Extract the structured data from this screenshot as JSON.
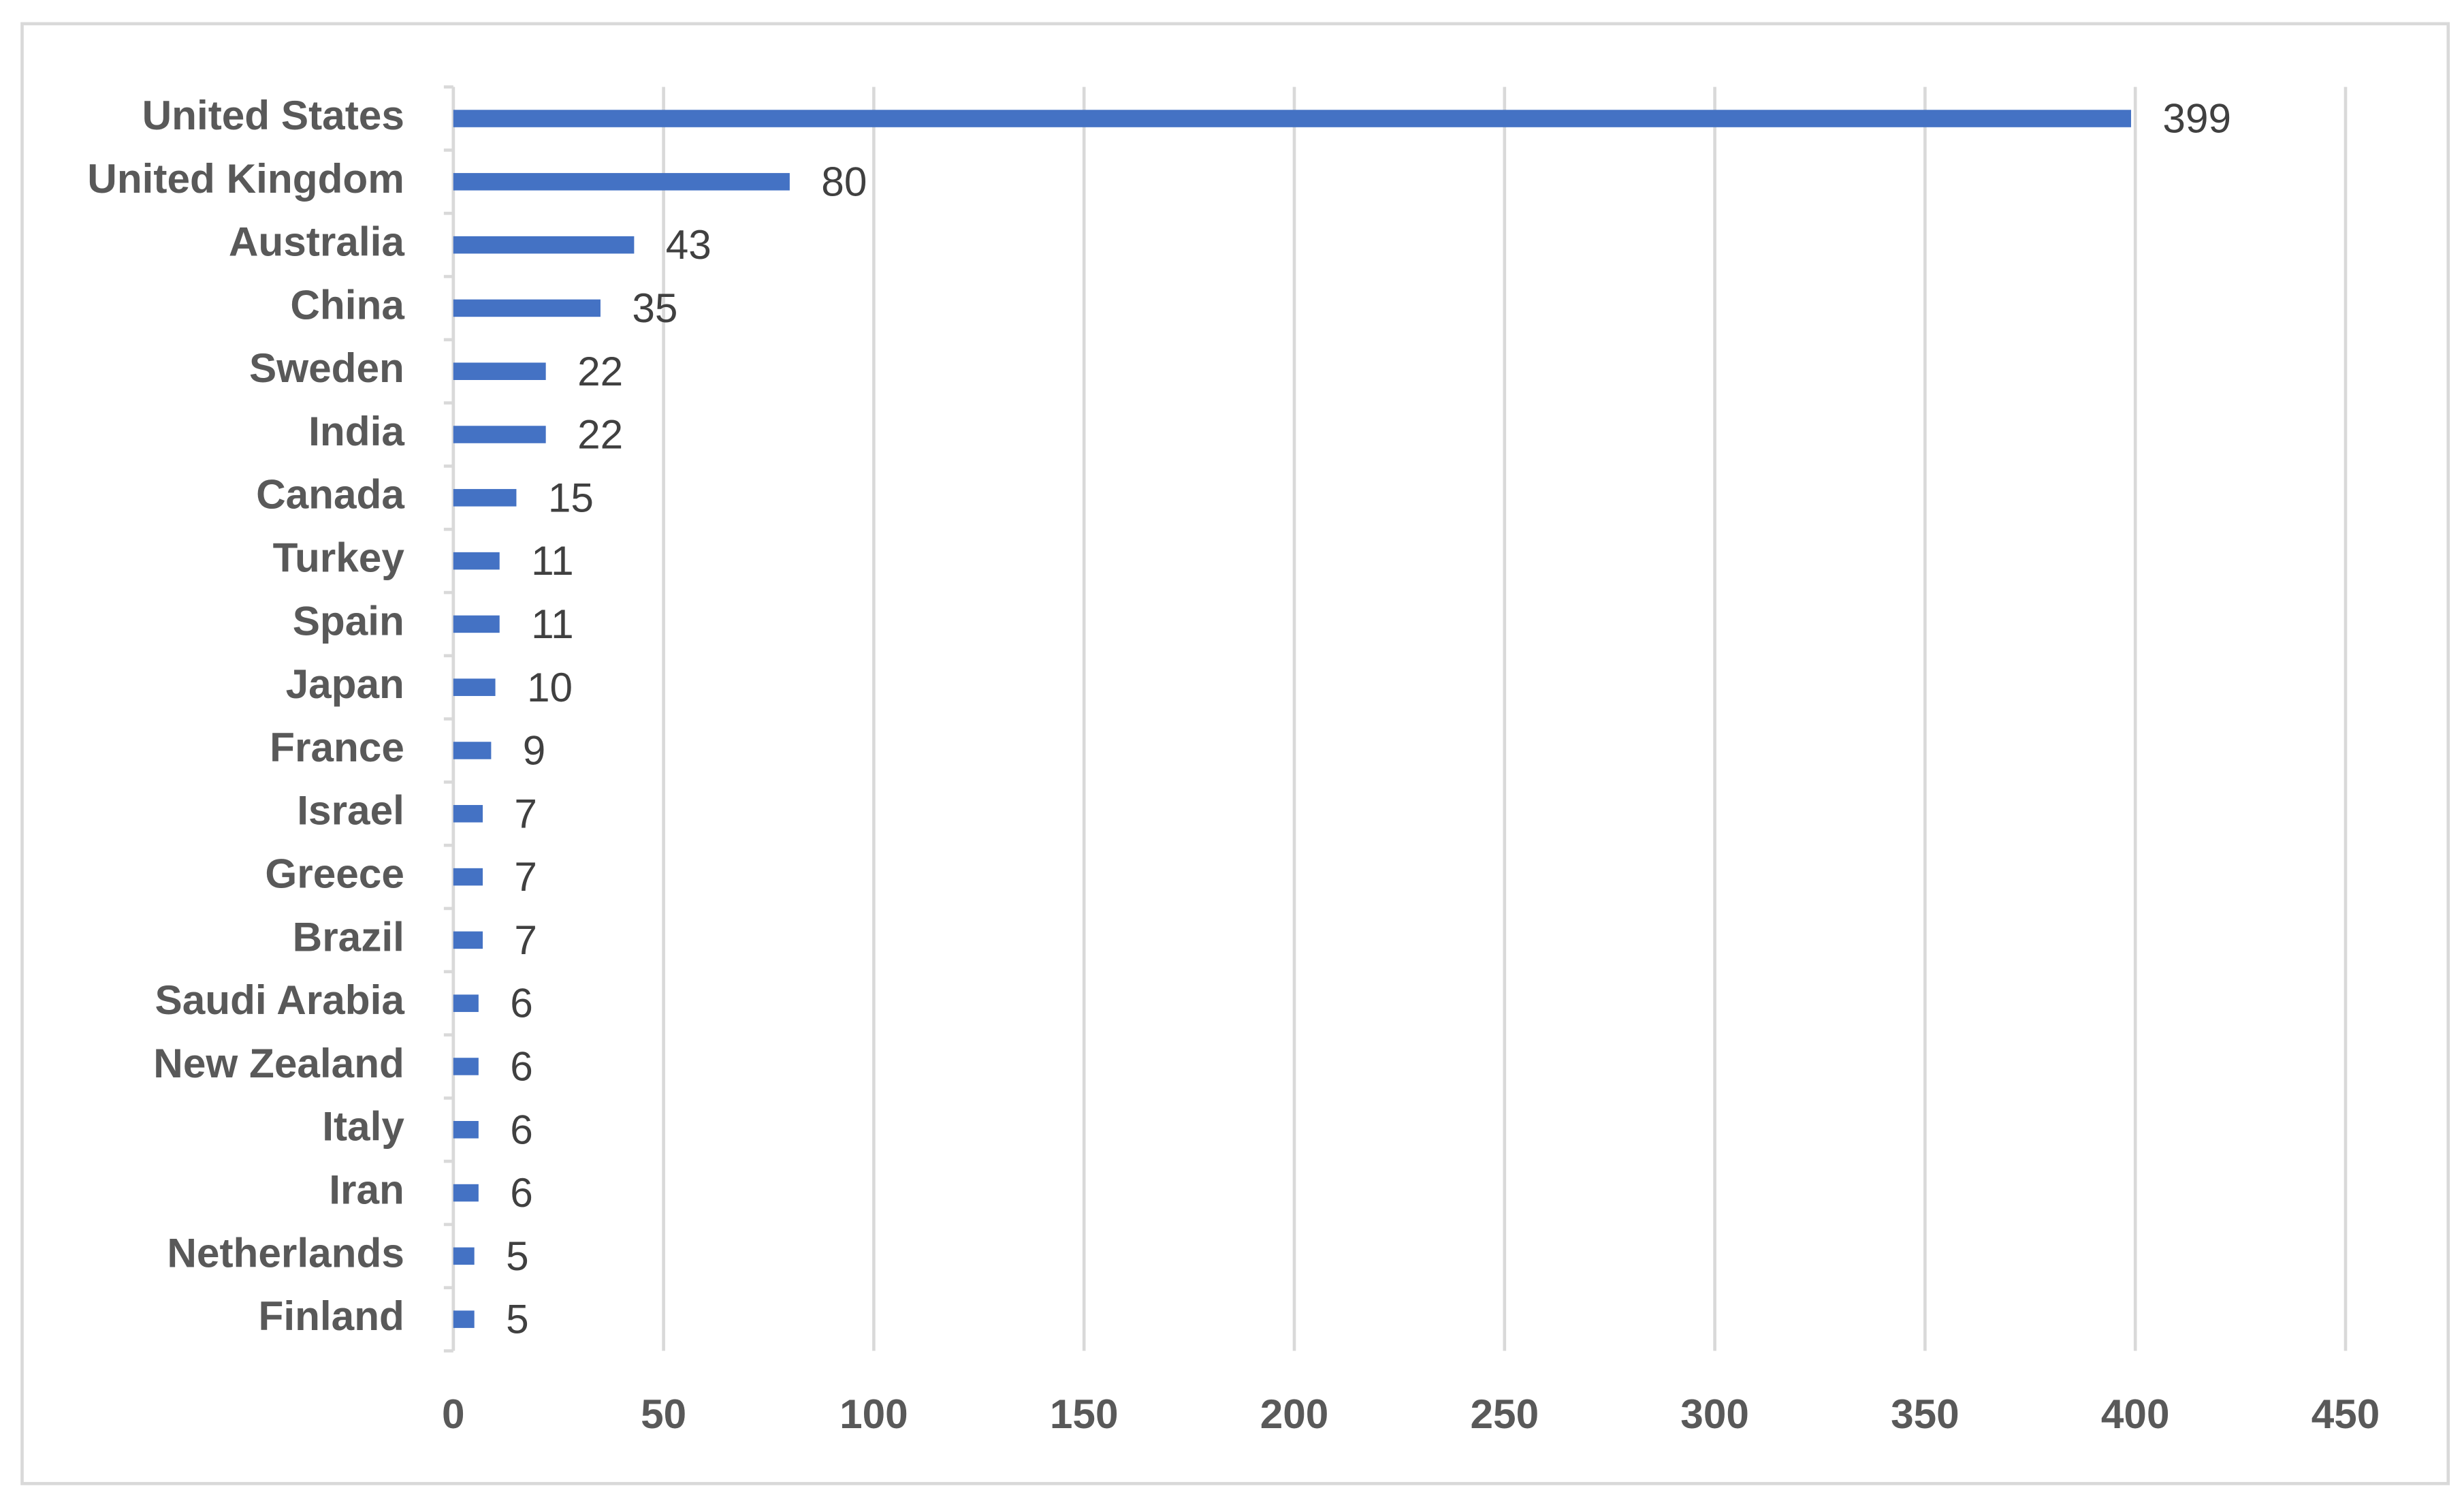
{
  "chart_data": {
    "type": "bar",
    "orientation": "horizontal",
    "categories": [
      "United States",
      "United Kingdom",
      "Australia",
      "China",
      "Sweden",
      "India",
      "Canada",
      "Turkey",
      "Spain",
      "Japan",
      "France",
      "Israel",
      "Greece",
      "Brazil",
      "Saudi Arabia",
      "New Zealand",
      "Italy",
      "Iran",
      "Netherlands",
      "Finland"
    ],
    "values": [
      399,
      80,
      43,
      35,
      22,
      22,
      15,
      11,
      11,
      10,
      9,
      7,
      7,
      7,
      6,
      6,
      6,
      6,
      5,
      5
    ],
    "color": "#4472c4",
    "xlim": [
      0,
      450
    ],
    "xticks": [
      0,
      50,
      100,
      150,
      200,
      250,
      300,
      350,
      400,
      450
    ],
    "grid": true
  }
}
